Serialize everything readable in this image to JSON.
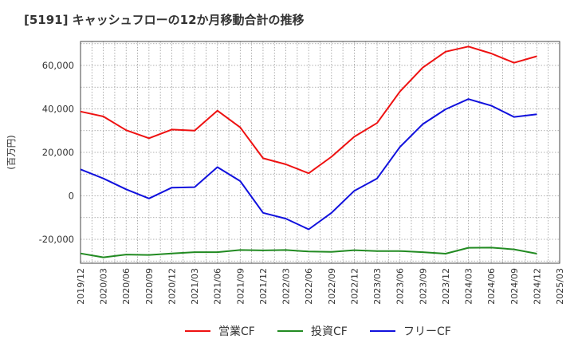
{
  "title": "[5191]  キャッシュフローの12か月移動合計の推移",
  "chart_data": {
    "type": "line",
    "title": "[5191]  キャッシュフローの12か月移動合計の推移",
    "ylabel": "(百万円)",
    "xlabel": "",
    "x": [
      "2019/12",
      "2020/03",
      "2020/06",
      "2020/09",
      "2020/12",
      "2021/03",
      "2021/06",
      "2021/09",
      "2021/12",
      "2022/03",
      "2022/06",
      "2022/09",
      "2022/12",
      "2023/03",
      "2023/06",
      "2023/09",
      "2023/12",
      "2024/03",
      "2024/06",
      "2024/09",
      "2024/12"
    ],
    "x_ticks": [
      "2019/12",
      "2020/03",
      "2020/06",
      "2020/09",
      "2020/12",
      "2021/03",
      "2021/06",
      "2021/09",
      "2021/12",
      "2022/03",
      "2022/06",
      "2022/09",
      "2022/12",
      "2023/03",
      "2023/06",
      "2023/09",
      "2023/12",
      "2024/03",
      "2024/06",
      "2024/09",
      "2024/12",
      "2025/03"
    ],
    "ylim": [
      -31000,
      71000
    ],
    "y_ticks": [
      -20000,
      0,
      20000,
      40000,
      60000
    ],
    "y_tick_labels": [
      "-20,000",
      "0",
      "20,000",
      "40,000",
      "60,000"
    ],
    "grid": true,
    "legend_position": "bottom",
    "series": [
      {
        "name": "営業CF",
        "color": "#ee1111",
        "values": [
          38800,
          36500,
          30200,
          26500,
          30500,
          30000,
          39200,
          31500,
          17300,
          14500,
          10400,
          18000,
          27200,
          33500,
          48000,
          59000,
          66300,
          68700,
          65500,
          61200,
          64200
        ]
      },
      {
        "name": "投資CF",
        "color": "#228b22",
        "values": [
          -26500,
          -28300,
          -27000,
          -27200,
          -26500,
          -25900,
          -25900,
          -24900,
          -25100,
          -24900,
          -25600,
          -25800,
          -25000,
          -25400,
          -25400,
          -25900,
          -26600,
          -23900,
          -23800,
          -24600,
          -26600
        ]
      },
      {
        "name": "フリーCF",
        "color": "#1111dd",
        "values": [
          12200,
          8000,
          3000,
          -1200,
          3800,
          4000,
          13200,
          6800,
          -7800,
          -10500,
          -15400,
          -7800,
          2300,
          8000,
          22500,
          33000,
          39800,
          44500,
          41500,
          36300,
          37500
        ]
      }
    ]
  }
}
